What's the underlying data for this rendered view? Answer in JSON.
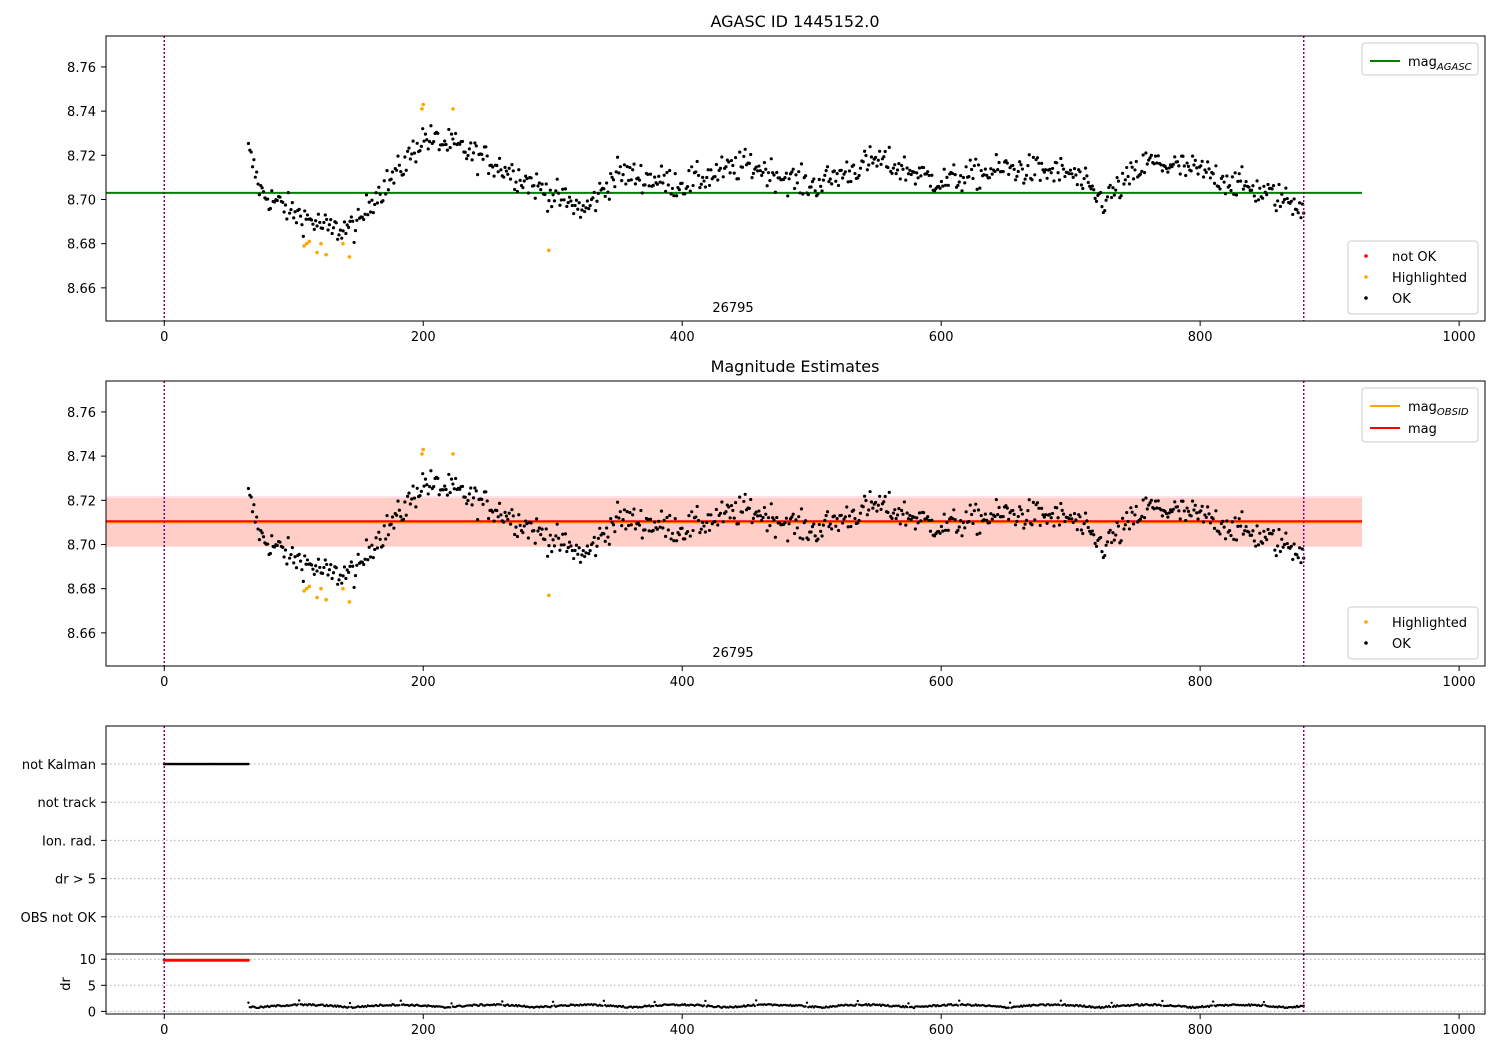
{
  "chart_data": [
    {
      "type": "scatter",
      "title": "AGASC ID 1445152.0",
      "annotation": "26795",
      "xlim": [
        -45,
        1020
      ],
      "ylim": [
        8.645,
        8.774
      ],
      "xticks": [
        "0",
        "200",
        "400",
        "600",
        "800",
        "1000"
      ],
      "yticks": [
        "8.66",
        "8.68",
        "8.70",
        "8.72",
        "8.74",
        "8.76"
      ],
      "vlines": [
        0,
        880
      ],
      "hline": {
        "y": 8.703,
        "x": [
          -45,
          925
        ],
        "color": "#008000"
      },
      "legend_lines": [
        {
          "label": "mag",
          "sub": "AGASC",
          "color": "#008000"
        }
      ],
      "legend_points": [
        {
          "label": "not OK",
          "color": "#ff0000"
        },
        {
          "label": "Highlighted",
          "color": "#ffa500"
        },
        {
          "label": "OK",
          "color": "#000000"
        }
      ]
    },
    {
      "type": "scatter",
      "title": "Magnitude Estimates",
      "annotation": "26795",
      "xlim": [
        -45,
        1020
      ],
      "ylim": [
        8.645,
        8.774
      ],
      "xticks": [
        "0",
        "200",
        "400",
        "600",
        "800",
        "1000"
      ],
      "yticks": [
        "8.66",
        "8.68",
        "8.70",
        "8.72",
        "8.74",
        "8.76"
      ],
      "vlines": [
        0,
        880
      ],
      "bands": [
        {
          "y": [
            8.699,
            8.722
          ],
          "color": "#ffc0cb",
          "opacity": 0.45
        },
        {
          "y": [
            8.699,
            8.721
          ],
          "color": "#ffa07a",
          "opacity": 0.3
        }
      ],
      "lines": [
        {
          "y": 8.71,
          "color": "#ffa500"
        },
        {
          "y": 8.7105,
          "color": "#ff0000"
        }
      ],
      "legend_lines": [
        {
          "label": "mag",
          "sub": "OBSID",
          "color": "#ffa500"
        },
        {
          "label": "mag",
          "sub": "",
          "color": "#ff0000"
        }
      ],
      "legend_points": [
        {
          "label": "Highlighted",
          "color": "#ffa500"
        },
        {
          "label": "OK",
          "color": "#000000"
        }
      ]
    },
    {
      "type": "scatter",
      "title": "",
      "categories": [
        "not Kalman",
        "not track",
        "Ion. rad.",
        "dr > 5",
        "OBS not OK"
      ],
      "flag_ranges": [
        {
          "category": "not Kalman",
          "x": [
            0,
            65
          ]
        }
      ],
      "xlim": [
        -45,
        1020
      ],
      "xticks": [
        "0",
        "200",
        "400",
        "600",
        "800",
        "1000"
      ],
      "vlines": [
        0,
        880
      ]
    },
    {
      "type": "scatter",
      "title": "",
      "ylabel": "dr",
      "xlim": [
        -45,
        1020
      ],
      "ylim": [
        -0.5,
        11
      ],
      "xticks": [
        "0",
        "200",
        "400",
        "600",
        "800",
        "1000"
      ],
      "yticks": [
        "0",
        "5",
        "10"
      ],
      "vlines": [
        0,
        880
      ],
      "segments": [
        {
          "x": [
            0,
            65
          ],
          "y": 9.8,
          "color": "#ff0000"
        },
        {
          "x": [
            65,
            880
          ],
          "y_range": [
            0.2,
            2.1
          ],
          "color": "#000000"
        }
      ]
    }
  ],
  "series_profile": {
    "x_start": 65,
    "x_end": 880,
    "n_points": 770,
    "knots_x": [
      65,
      75,
      100,
      130,
      150,
      160,
      180,
      200,
      225,
      260,
      300,
      325,
      350,
      400,
      450,
      500,
      550,
      600,
      650,
      700,
      725,
      760,
      800,
      850,
      880
    ],
    "knots_y": [
      8.722,
      8.703,
      8.694,
      8.686,
      8.688,
      8.7,
      8.712,
      8.728,
      8.724,
      8.715,
      8.702,
      8.695,
      8.712,
      8.707,
      8.716,
      8.706,
      8.718,
      8.708,
      8.714,
      8.712,
      8.699,
      8.717,
      8.713,
      8.703,
      8.697
    ],
    "noise": 0.0055,
    "highlighted": [
      [
        108,
        8.679
      ],
      [
        110,
        8.68
      ],
      [
        112,
        8.681
      ],
      [
        118,
        8.676
      ],
      [
        121,
        8.68
      ],
      [
        125,
        8.675
      ],
      [
        138,
        8.68
      ],
      [
        143,
        8.674
      ],
      [
        199,
        8.741
      ],
      [
        200,
        8.743
      ],
      [
        223,
        8.741
      ],
      [
        297,
        8.677
      ]
    ]
  }
}
